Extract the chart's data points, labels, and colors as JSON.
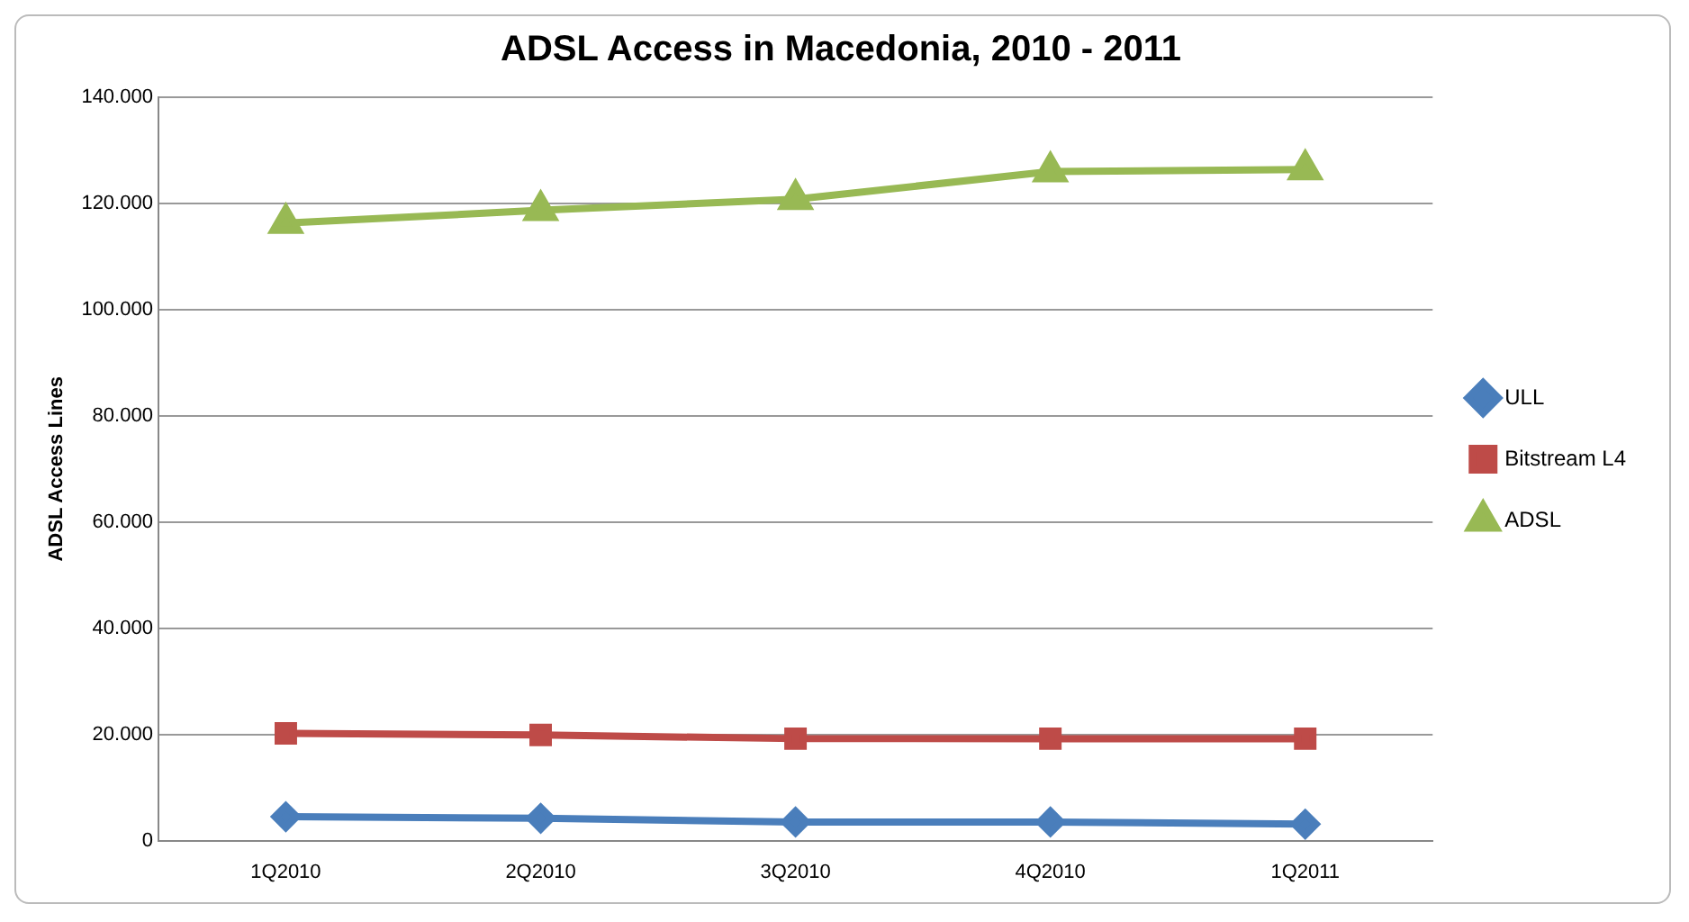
{
  "chart_data": {
    "type": "line",
    "title": "ADSL Access in Macedonia, 2010 - 2011",
    "ylabel": "ADSL Access Lines",
    "categories": [
      "1Q2010",
      "2Q2010",
      "3Q2010",
      "4Q2010",
      "1Q2011"
    ],
    "series": [
      {
        "name": "ULL",
        "color": "#4a7ebb",
        "marker": "diamond",
        "values": [
          4500,
          4200,
          3500,
          3500,
          3100
        ]
      },
      {
        "name": "Bitstream L4",
        "color": "#be4b48",
        "marker": "square",
        "values": [
          20200,
          19900,
          19200,
          19200,
          19200
        ]
      },
      {
        "name": "ADSL",
        "color": "#98b954",
        "marker": "triangle",
        "values": [
          116300,
          118700,
          120800,
          126000,
          126400
        ]
      }
    ],
    "ylim": [
      0,
      140000
    ],
    "yticks": [
      {
        "value": 0,
        "label": "0"
      },
      {
        "value": 20000,
        "label": "20.000"
      },
      {
        "value": 40000,
        "label": "40.000"
      },
      {
        "value": 60000,
        "label": "60.000"
      },
      {
        "value": 80000,
        "label": "80.000"
      },
      {
        "value": 100000,
        "label": "100.000"
      },
      {
        "value": 120000,
        "label": "120.000"
      },
      {
        "value": 140000,
        "label": "140.000"
      }
    ],
    "grid": "y",
    "legend": "right",
    "line_style": "solid"
  }
}
